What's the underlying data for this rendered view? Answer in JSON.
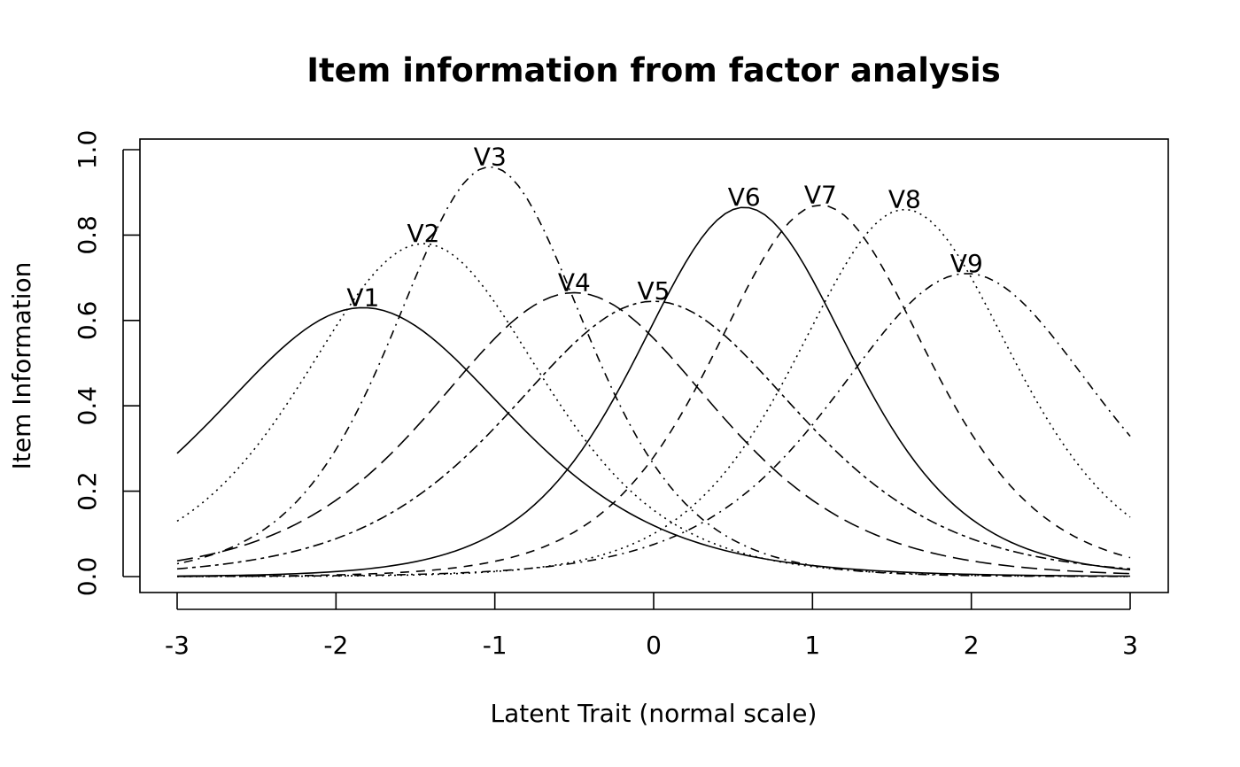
{
  "chart_data": {
    "type": "line",
    "title": "Item information from factor analysis",
    "xlabel": "Latent Trait (normal scale)",
    "ylabel": "Item Information",
    "xlim": [
      -3,
      3
    ],
    "ylim": [
      0,
      1.0
    ],
    "x_ticks": [
      "-3",
      "-2",
      "-1",
      "0",
      "1",
      "2",
      "3"
    ],
    "y_ticks": [
      "0.0",
      "0.2",
      "0.4",
      "0.6",
      "0.8",
      "1.0"
    ],
    "grid": false,
    "legend": "none",
    "series": [
      {
        "name": "V1",
        "peak_location": -1.83,
        "peak_information": 0.63,
        "line_style": "solid"
      },
      {
        "name": "V2",
        "peak_location": -1.45,
        "peak_information": 0.78,
        "line_style": "dotted"
      },
      {
        "name": "V3",
        "peak_location": -1.03,
        "peak_information": 0.96,
        "line_style": "dotdash"
      },
      {
        "name": "V4",
        "peak_location": -0.5,
        "peak_information": 0.665,
        "line_style": "longdash"
      },
      {
        "name": "V5",
        "peak_location": 0.0,
        "peak_information": 0.645,
        "line_style": "twodash"
      },
      {
        "name": "V6",
        "peak_location": 0.57,
        "peak_information": 0.865,
        "line_style": "solid"
      },
      {
        "name": "V7",
        "peak_location": 1.05,
        "peak_information": 0.87,
        "line_style": "dashed"
      },
      {
        "name": "V8",
        "peak_location": 1.58,
        "peak_information": 0.86,
        "line_style": "dotted"
      },
      {
        "name": "V9",
        "peak_location": 1.97,
        "peak_information": 0.71,
        "line_style": "dotdash"
      }
    ]
  }
}
